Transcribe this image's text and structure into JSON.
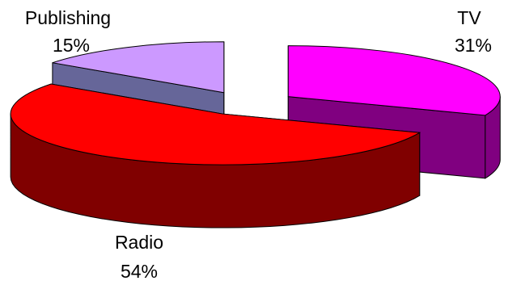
{
  "chart_data": {
    "type": "pie",
    "style": "3d-exploded",
    "categories": [
      "TV",
      "Radio",
      "Publishing"
    ],
    "values": [
      31,
      54,
      15
    ],
    "value_labels": [
      "31%",
      "54%",
      "15%"
    ],
    "colors": {
      "TV": {
        "top": "#FF00FF",
        "side": "#800080"
      },
      "Radio": {
        "top": "#FF0000",
        "side": "#800000"
      },
      "Publishing": {
        "top": "#CC99FF",
        "side": "#666699"
      }
    },
    "legend": "none"
  }
}
